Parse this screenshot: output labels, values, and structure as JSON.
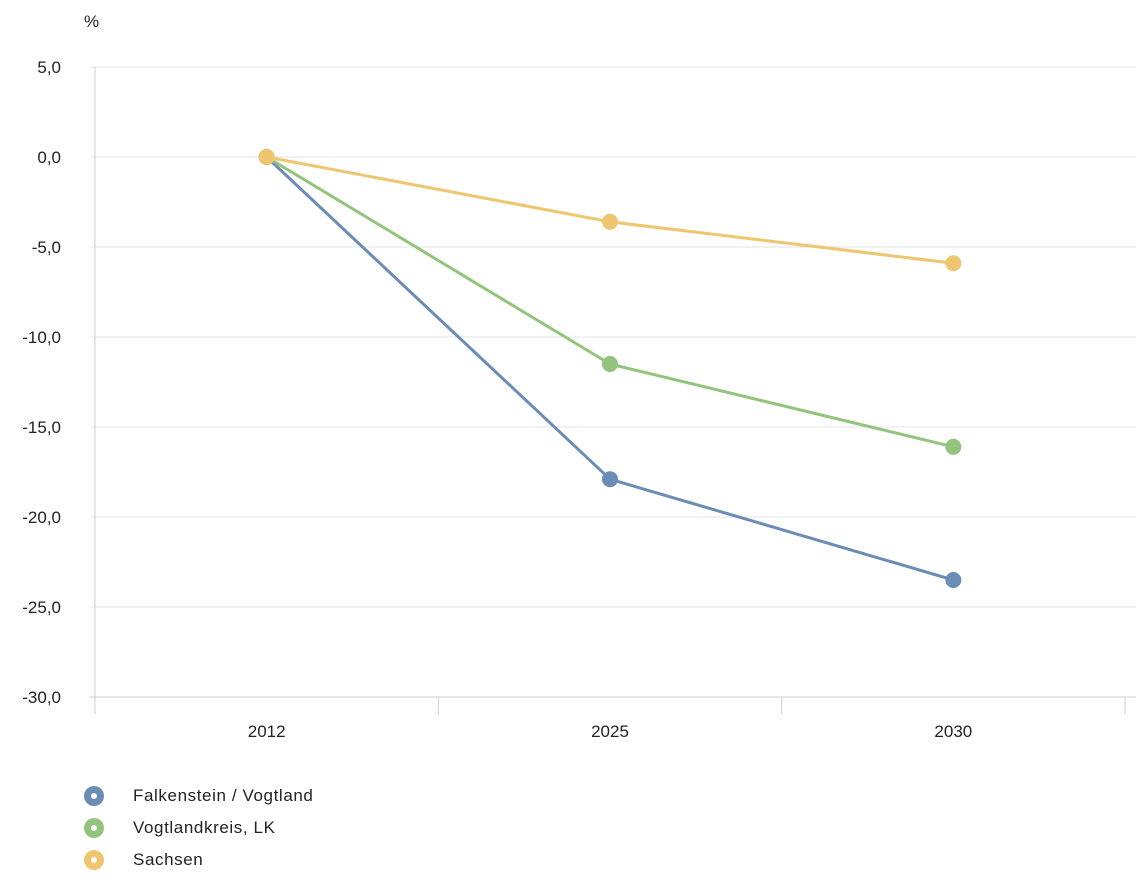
{
  "chart_data": {
    "type": "line",
    "title": "",
    "ylabel": "%",
    "xlabel": "",
    "categories": [
      "2012",
      "2025",
      "2030"
    ],
    "ylim": [
      -30,
      5
    ],
    "yticks": [
      5,
      0,
      -5,
      -10,
      -15,
      -20,
      -25,
      -30
    ],
    "ytick_labels": [
      "5,0",
      "0,0",
      "-5,0",
      "-10,0",
      "-15,0",
      "-20,0",
      "-25,0",
      "-30,0"
    ],
    "grid": true,
    "legend_position": "bottom-left",
    "series": [
      {
        "name": "Falkenstein / Vogtland",
        "color": "#6b8cb5",
        "values": [
          0,
          -17.9,
          -23.5
        ]
      },
      {
        "name": "Vogtlandkreis, LK",
        "color": "#93c47d",
        "values": [
          0,
          -11.5,
          -16.1
        ]
      },
      {
        "name": "Sachsen",
        "color": "#efc66f",
        "values": [
          0,
          -3.6,
          -5.9
        ]
      }
    ]
  }
}
